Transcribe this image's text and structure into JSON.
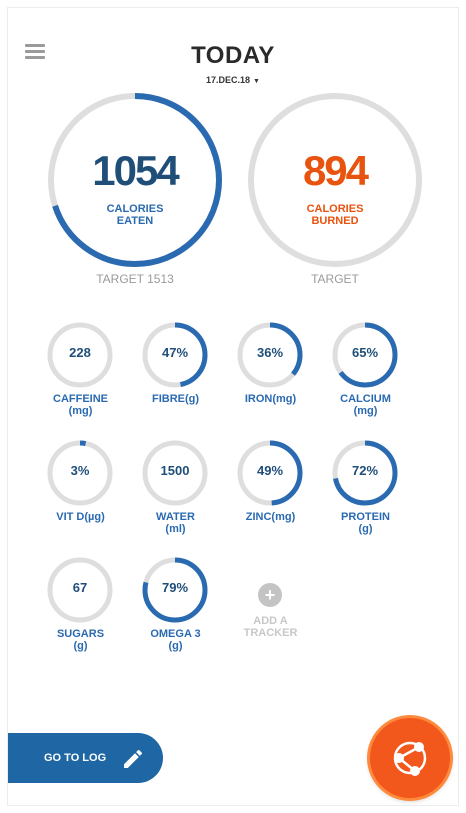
{
  "header": {
    "title": "TODAY",
    "date": "17.DEC.18",
    "date_caret": "▼"
  },
  "calories_eaten": {
    "value": "1054",
    "label_line1": "CALORIES",
    "label_line2": "EATEN",
    "target": "TARGET 1513",
    "progress": 0.7,
    "color": "#2a6ab1",
    "num_color": "#1f4e79"
  },
  "calories_burned": {
    "value": "894",
    "label_line1": "CALORIES",
    "label_line2": "BURNED",
    "target": "TARGET",
    "progress": 0,
    "color": "#e8540f"
  },
  "trackers": [
    {
      "value": "228",
      "name_line1": "CAFFEINE",
      "name_line2": "(mg)",
      "progress": 0
    },
    {
      "value": "47%",
      "name_line1": "FIBRE(g)",
      "name_line2": "",
      "progress": 0.47
    },
    {
      "value": "36%",
      "name_line1": "IRON(mg)",
      "name_line2": "",
      "progress": 0.36
    },
    {
      "value": "65%",
      "name_line1": "CALCIUM",
      "name_line2": "(mg)",
      "progress": 0.65
    },
    {
      "value": "3%",
      "name_line1": "VIT D(µg)",
      "name_line2": "",
      "progress": 0.03
    },
    {
      "value": "1500",
      "name_line1": "WATER",
      "name_line2": "(ml)",
      "progress": 0
    },
    {
      "value": "49%",
      "name_line1": "ZINC(mg)",
      "name_line2": "",
      "progress": 0.49
    },
    {
      "value": "72%",
      "name_line1": "PROTEIN",
      "name_line2": "(g)",
      "progress": 0.72
    },
    {
      "value": "67",
      "name_line1": "SUGARS",
      "name_line2": "(g)",
      "progress": 0
    },
    {
      "value": "79%",
      "name_line1": "OMEGA 3",
      "name_line2": "(g)",
      "progress": 0.79
    }
  ],
  "add_tracker": {
    "plus": "+",
    "line1": "ADD A",
    "line2": "TRACKER"
  },
  "go_to_log": {
    "label": "GO TO LOG",
    "icon": "pencil-icon"
  },
  "fab": {
    "icon": "share-network-icon"
  },
  "colors": {
    "ring_track": "#dedede",
    "ring_fill": "#2a6ab1",
    "fab": "#f2571b"
  }
}
